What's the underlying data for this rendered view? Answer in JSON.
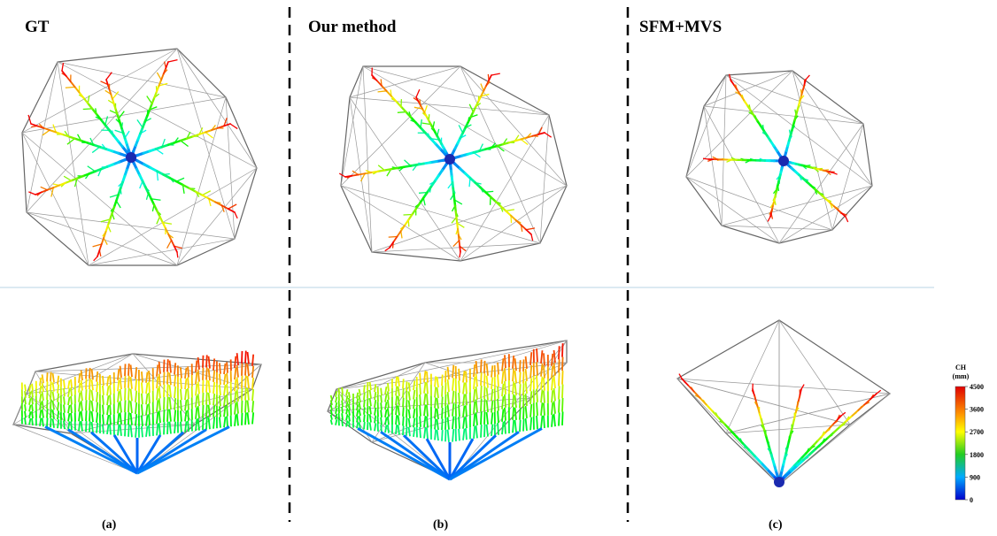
{
  "panels": [
    {
      "title": "GT",
      "caption": "(a)"
    },
    {
      "title": "Our method",
      "caption": "(b)"
    },
    {
      "title": "SFM+MVS",
      "caption": "(c)"
    }
  ],
  "colorbar": {
    "title": "CH",
    "unit": "(mm)",
    "lim": [
      0,
      4500
    ],
    "ticks": [
      4500,
      3600,
      2700,
      1800,
      900,
      0
    ]
  }
}
